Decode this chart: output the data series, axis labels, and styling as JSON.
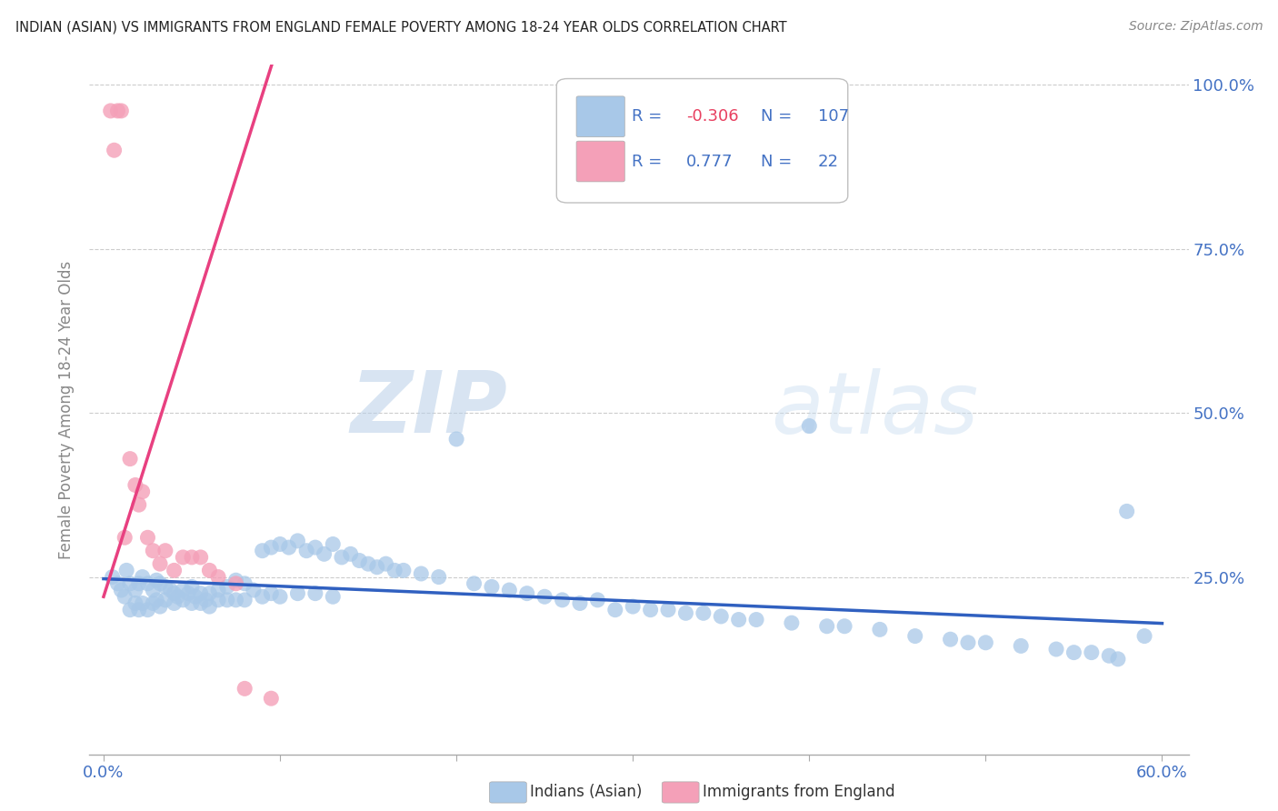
{
  "title": "INDIAN (ASIAN) VS IMMIGRANTS FROM ENGLAND FEMALE POVERTY AMONG 18-24 YEAR OLDS CORRELATION CHART",
  "source": "Source: ZipAtlas.com",
  "ylabel": "Female Poverty Among 18-24 Year Olds",
  "xlim": [
    0.0,
    0.6
  ],
  "ylim": [
    0.0,
    1.02
  ],
  "legend_R1": "-0.306",
  "legend_N1": "107",
  "legend_R2": "0.777",
  "legend_N2": "22",
  "color_blue": "#a8c8e8",
  "color_pink": "#f4a0b8",
  "color_blue_line": "#3060c0",
  "color_pink_line": "#e84080",
  "color_text_blue": "#4472c4",
  "color_text_neg": "#e84060",
  "color_text_pos": "#4472c4",
  "watermark_color": "#d0dff0",
  "blue_x": [
    0.005,
    0.008,
    0.01,
    0.012,
    0.013,
    0.015,
    0.015,
    0.018,
    0.018,
    0.02,
    0.02,
    0.022,
    0.022,
    0.025,
    0.025,
    0.028,
    0.028,
    0.03,
    0.03,
    0.032,
    0.032,
    0.035,
    0.035,
    0.038,
    0.04,
    0.04,
    0.042,
    0.045,
    0.045,
    0.048,
    0.05,
    0.05,
    0.052,
    0.055,
    0.055,
    0.058,
    0.06,
    0.06,
    0.065,
    0.065,
    0.07,
    0.07,
    0.075,
    0.075,
    0.08,
    0.08,
    0.085,
    0.09,
    0.09,
    0.095,
    0.095,
    0.1,
    0.1,
    0.105,
    0.11,
    0.11,
    0.115,
    0.12,
    0.12,
    0.125,
    0.13,
    0.13,
    0.135,
    0.14,
    0.145,
    0.15,
    0.155,
    0.16,
    0.165,
    0.17,
    0.18,
    0.19,
    0.2,
    0.21,
    0.22,
    0.23,
    0.24,
    0.25,
    0.26,
    0.27,
    0.28,
    0.29,
    0.3,
    0.31,
    0.32,
    0.33,
    0.34,
    0.35,
    0.36,
    0.37,
    0.39,
    0.4,
    0.41,
    0.42,
    0.44,
    0.46,
    0.48,
    0.49,
    0.5,
    0.52,
    0.54,
    0.55,
    0.56,
    0.57,
    0.575,
    0.58,
    0.59
  ],
  "blue_y": [
    0.25,
    0.24,
    0.23,
    0.22,
    0.26,
    0.24,
    0.2,
    0.23,
    0.21,
    0.24,
    0.2,
    0.25,
    0.21,
    0.24,
    0.2,
    0.23,
    0.21,
    0.245,
    0.215,
    0.24,
    0.205,
    0.235,
    0.215,
    0.23,
    0.225,
    0.21,
    0.22,
    0.23,
    0.215,
    0.225,
    0.235,
    0.21,
    0.22,
    0.225,
    0.21,
    0.215,
    0.225,
    0.205,
    0.23,
    0.215,
    0.235,
    0.215,
    0.245,
    0.215,
    0.24,
    0.215,
    0.23,
    0.29,
    0.22,
    0.295,
    0.225,
    0.3,
    0.22,
    0.295,
    0.305,
    0.225,
    0.29,
    0.295,
    0.225,
    0.285,
    0.3,
    0.22,
    0.28,
    0.285,
    0.275,
    0.27,
    0.265,
    0.27,
    0.26,
    0.26,
    0.255,
    0.25,
    0.46,
    0.24,
    0.235,
    0.23,
    0.225,
    0.22,
    0.215,
    0.21,
    0.215,
    0.2,
    0.205,
    0.2,
    0.2,
    0.195,
    0.195,
    0.19,
    0.185,
    0.185,
    0.18,
    0.48,
    0.175,
    0.175,
    0.17,
    0.16,
    0.155,
    0.15,
    0.15,
    0.145,
    0.14,
    0.135,
    0.135,
    0.13,
    0.125,
    0.35,
    0.16
  ],
  "pink_x": [
    0.004,
    0.006,
    0.008,
    0.01,
    0.012,
    0.015,
    0.018,
    0.02,
    0.022,
    0.025,
    0.028,
    0.032,
    0.035,
    0.04,
    0.045,
    0.05,
    0.055,
    0.06,
    0.065,
    0.075,
    0.08,
    0.095
  ],
  "pink_y": [
    0.96,
    0.9,
    0.96,
    0.96,
    0.31,
    0.43,
    0.39,
    0.36,
    0.38,
    0.31,
    0.29,
    0.27,
    0.29,
    0.26,
    0.28,
    0.28,
    0.28,
    0.26,
    0.25,
    0.24,
    0.08,
    0.065
  ],
  "pink_line_x": [
    0.0,
    0.1
  ],
  "pink_line_slope": 8.5,
  "pink_line_intercept": 0.22,
  "blue_line_x": [
    0.0,
    0.6
  ],
  "blue_line_slope": -0.2,
  "blue_line_intercept": 0.255
}
